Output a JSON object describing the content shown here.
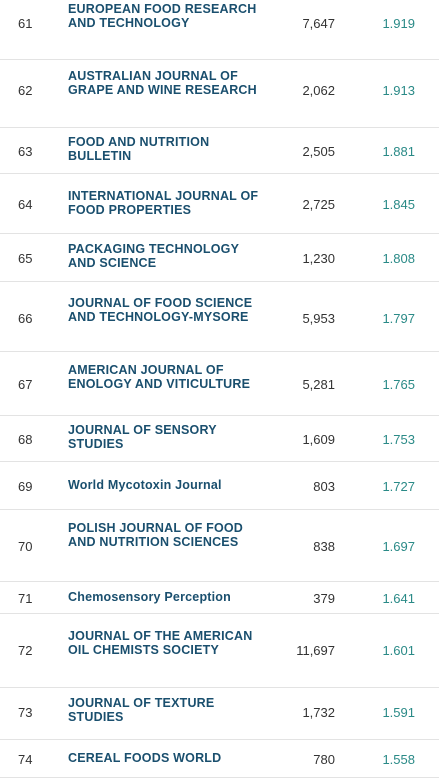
{
  "rows": [
    {
      "rank": "61",
      "title": "EUROPEAN FOOD RESEARCH AND TECHNOLOGY",
      "cites": "7,647",
      "jif": "1.919"
    },
    {
      "rank": "62",
      "title": "AUSTRALIAN JOURNAL OF GRAPE AND WINE RESEARCH",
      "cites": "2,062",
      "jif": "1.913"
    },
    {
      "rank": "63",
      "title": "FOOD AND NUTRITION BULLETIN",
      "cites": "2,505",
      "jif": "1.881"
    },
    {
      "rank": "64",
      "title": "INTERNATIONAL JOURNAL OF FOOD PROPERTIES",
      "cites": "2,725",
      "jif": "1.845"
    },
    {
      "rank": "65",
      "title": "PACKAGING TECHNOLOGY AND SCIENCE",
      "cites": "1,230",
      "jif": "1.808"
    },
    {
      "rank": "66",
      "title": "JOURNAL OF FOOD SCIENCE AND TECHNOLOGY-MYSORE",
      "cites": "5,953",
      "jif": "1.797"
    },
    {
      "rank": "67",
      "title": "AMERICAN JOURNAL OF ENOLOGY AND VITICULTURE",
      "cites": "5,281",
      "jif": "1.765"
    },
    {
      "rank": "68",
      "title": "JOURNAL OF SENSORY STUDIES",
      "cites": "1,609",
      "jif": "1.753"
    },
    {
      "rank": "69",
      "title": "World Mycotoxin Journal",
      "cites": "803",
      "jif": "1.727"
    },
    {
      "rank": "70",
      "title": "POLISH JOURNAL OF FOOD AND NUTRITION SCIENCES",
      "cites": "838",
      "jif": "1.697"
    },
    {
      "rank": "71",
      "title": "Chemosensory Perception",
      "cites": "379",
      "jif": "1.641"
    },
    {
      "rank": "72",
      "title": "JOURNAL OF THE AMERICAN OIL CHEMISTS SOCIETY",
      "cites": "11,697",
      "jif": "1.601"
    },
    {
      "rank": "73",
      "title": "JOURNAL OF TEXTURE STUDIES",
      "cites": "1,732",
      "jif": "1.591"
    },
    {
      "rank": "74",
      "title": "CEREAL FOODS WORLD",
      "cites": "780",
      "jif": "1.558"
    }
  ]
}
